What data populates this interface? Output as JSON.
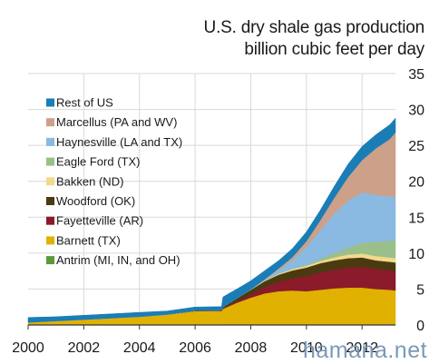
{
  "title_line1": "U.S. dry shale gas production",
  "title_line2": "billion cubic feet per day",
  "watermark": "hamana.net",
  "chart_data": {
    "type": "area",
    "stacked": true,
    "x": [
      2000.0,
      2001.0,
      2002.0,
      2003.0,
      2004.0,
      2005.0,
      2006.0,
      2006.95,
      2007.0,
      2007.5,
      2008.0,
      2008.5,
      2009.0,
      2009.5,
      2010.0,
      2010.5,
      2011.0,
      2011.5,
      2012.0,
      2012.5,
      2013.0,
      2013.2
    ],
    "series": [
      {
        "name": "Antrim (MI, IN, and OH)",
        "color": "#5b9a3a",
        "values": [
          0.05,
          0.05,
          0.05,
          0.05,
          0.05,
          0.05,
          0.05,
          0.05,
          0.05,
          0.1,
          0.1,
          0.1,
          0.1,
          0.1,
          0.1,
          0.1,
          0.1,
          0.1,
          0.1,
          0.1,
          0.1,
          0.1
        ]
      },
      {
        "name": "Barnett (TX)",
        "color": "#e0b100",
        "values": [
          0.3,
          0.5,
          0.7,
          0.9,
          1.1,
          1.4,
          1.9,
          1.9,
          2.2,
          3.0,
          3.7,
          4.3,
          4.6,
          4.7,
          4.6,
          4.8,
          5.0,
          5.1,
          5.1,
          4.9,
          4.8,
          4.7
        ]
      },
      {
        "name": "Fayetteville (AR)",
        "color": "#8b1a2b",
        "values": [
          0,
          0,
          0,
          0,
          0,
          0,
          0,
          0,
          0.05,
          0.2,
          0.5,
          0.9,
          1.3,
          1.7,
          2.1,
          2.4,
          2.6,
          2.8,
          2.9,
          2.8,
          2.7,
          2.7
        ]
      },
      {
        "name": "Woodford (OK)",
        "color": "#4a3a10",
        "values": [
          0,
          0,
          0,
          0,
          0,
          0,
          0.05,
          0.1,
          0.2,
          0.4,
          0.6,
          0.8,
          1.0,
          1.1,
          1.2,
          1.3,
          1.3,
          1.3,
          1.3,
          1.2,
          1.2,
          1.2
        ]
      },
      {
        "name": "Bakken (ND)",
        "color": "#f3d98b",
        "values": [
          0,
          0,
          0,
          0,
          0,
          0,
          0,
          0,
          0,
          0,
          0.05,
          0.1,
          0.15,
          0.2,
          0.25,
          0.3,
          0.4,
          0.5,
          0.55,
          0.6,
          0.6,
          0.6
        ]
      },
      {
        "name": "Eagle Ford (TX)",
        "color": "#9bbf8a",
        "values": [
          0,
          0,
          0,
          0,
          0,
          0,
          0,
          0,
          0,
          0,
          0,
          0,
          0,
          0.05,
          0.1,
          0.3,
          0.6,
          1.0,
          1.5,
          2.0,
          2.3,
          2.5
        ]
      },
      {
        "name": "Haynesville (LA and TX)",
        "color": "#8ab9e2",
        "values": [
          0,
          0,
          0,
          0,
          0,
          0,
          0,
          0,
          0,
          0,
          0,
          0.1,
          0.5,
          1.2,
          2.5,
          4.0,
          5.5,
          6.5,
          7.0,
          6.5,
          6.2,
          6.0
        ]
      },
      {
        "name": "Marcellus (PA and WV)",
        "color": "#cda08a",
        "values": [
          0,
          0,
          0,
          0,
          0,
          0,
          0,
          0,
          0,
          0,
          0,
          0.05,
          0.2,
          0.4,
          0.8,
          1.4,
          2.2,
          3.3,
          4.5,
          6.5,
          8.0,
          9.0
        ]
      },
      {
        "name": "Rest of US",
        "color": "#1a7db6",
        "values": [
          0.7,
          0.6,
          0.6,
          0.6,
          0.6,
          0.5,
          0.5,
          0.5,
          1.4,
          1.3,
          1.2,
          1.2,
          1.1,
          1.2,
          1.3,
          1.4,
          1.6,
          1.8,
          1.9,
          1.9,
          2.0,
          2.0
        ]
      }
    ],
    "legend_order": [
      "Rest of US",
      "Marcellus (PA and WV)",
      "Haynesville (LA and TX)",
      "Eagle Ford (TX)",
      "Bakken (ND)",
      "Woodford (OK)",
      "Fayetteville (AR)",
      "Barnett (TX)",
      "Antrim (MI, IN, and OH)"
    ],
    "legend_position": "left",
    "xlim": [
      2000,
      2013.2
    ],
    "ylim": [
      0,
      35
    ],
    "x_ticks": [
      "2000",
      "2002",
      "2004",
      "2006",
      "2008",
      "2010",
      "2012"
    ],
    "y_ticks": [
      "0",
      "5",
      "10",
      "15",
      "20",
      "25",
      "30",
      "35"
    ],
    "y_axis_side": "right",
    "grid": true,
    "grid_color": "#d9d9d9",
    "axis_color": "#333333"
  }
}
